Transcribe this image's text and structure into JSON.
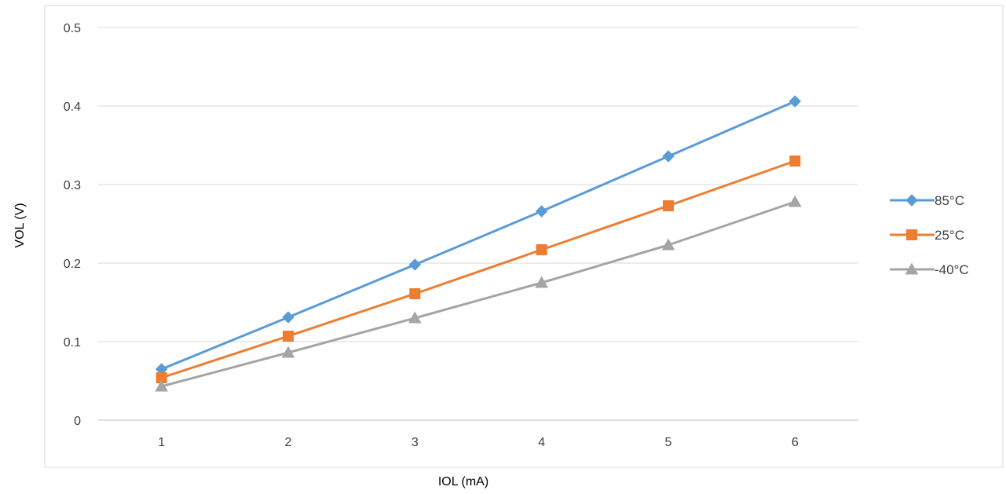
{
  "chart_data": {
    "type": "line",
    "title": "",
    "xlabel": "IOL (mA)",
    "ylabel": "VOL (V)",
    "categories": [
      "1",
      "2",
      "3",
      "4",
      "5",
      "6"
    ],
    "ylim": [
      0,
      0.5
    ],
    "yticks": [
      "0",
      "0.1",
      "0.2",
      "0.3",
      "0.4",
      "0.5"
    ],
    "grid": true,
    "legend_position": "right",
    "series": [
      {
        "name": "85°C",
        "color": "#5b9bd5",
        "marker": "diamond",
        "values": [
          0.065,
          0.131,
          0.198,
          0.266,
          0.336,
          0.406
        ]
      },
      {
        "name": "25°C",
        "color": "#ed7d31",
        "marker": "square",
        "values": [
          0.054,
          0.107,
          0.161,
          0.217,
          0.273,
          0.33
        ]
      },
      {
        "name": "-40°C",
        "color": "#a5a5a5",
        "marker": "triangle",
        "values": [
          0.043,
          0.086,
          0.13,
          0.175,
          0.223,
          0.278
        ]
      }
    ]
  }
}
